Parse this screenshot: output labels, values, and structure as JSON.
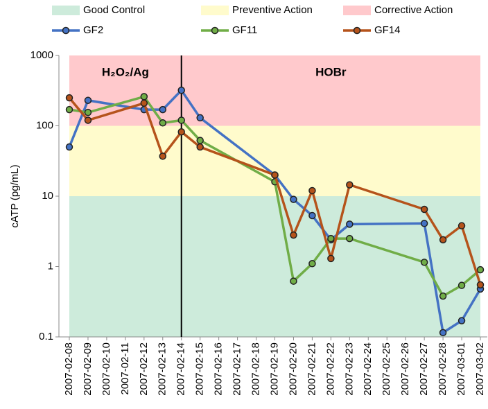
{
  "chart_data": {
    "type": "line",
    "ylabel": "cATP (pg/mL)",
    "log_scale": true,
    "ylim": [
      0.1,
      1000
    ],
    "yticks": [
      0.1,
      1,
      10,
      100,
      1000
    ],
    "xlim": [
      "2007-02-08",
      "2007-03-02"
    ],
    "xticks": [
      "2007-02-08",
      "2007-02-09",
      "2007-02-10",
      "2007-02-11",
      "2007-02-12",
      "2007-02-13",
      "2007-02-14",
      "2007-02-15",
      "2007-02-16",
      "2007-02-17",
      "2007-02-18",
      "2007-02-19",
      "2007-02-20",
      "2007-02-21",
      "2007-02-22",
      "2007-02-23",
      "2007-02-24",
      "2007-02-25",
      "2007-02-26",
      "2007-02-27",
      "2007-02-28",
      "2007-03-01",
      "2007-03-02"
    ],
    "bands": [
      {
        "name": "Good Control",
        "color": "#cdebdb",
        "range": [
          0.1,
          10
        ]
      },
      {
        "name": "Preventive Action",
        "color": "#fffbcc",
        "range": [
          10,
          100
        ]
      },
      {
        "name": "Corrective Action",
        "color": "#ffc9cc",
        "range": [
          100,
          1000
        ]
      }
    ],
    "vline": "2007-02-14",
    "annotations": [
      "H₂O₂/Ag",
      "HOBr"
    ],
    "x": [
      "2007-02-08",
      "2007-02-09",
      "2007-02-12",
      "2007-02-13",
      "2007-02-14",
      "2007-02-15",
      "2007-02-19",
      "2007-02-20",
      "2007-02-21",
      "2007-02-22",
      "2007-02-23",
      "2007-02-27",
      "2007-02-28",
      "2007-03-01",
      "2007-03-02"
    ],
    "series": [
      {
        "name": "GF2",
        "color": "#4472c4",
        "values": [
          50,
          230,
          170,
          170,
          320,
          130,
          20,
          9,
          5.3,
          2.4,
          4,
          4.1,
          0.115,
          0.17,
          0.48
        ]
      },
      {
        "name": "GF11",
        "color": "#70ad47",
        "values": [
          170,
          155,
          260,
          110,
          120,
          62,
          16,
          0.62,
          1.1,
          2.5,
          2.5,
          1.15,
          0.38,
          0.54,
          0.9
        ]
      },
      {
        "name": "GF14",
        "color": "#b5531b",
        "values": [
          250,
          120,
          210,
          37,
          82,
          50,
          20,
          2.8,
          12,
          1.3,
          14.5,
          6.5,
          2.4,
          3.8,
          0.55
        ]
      }
    ]
  }
}
